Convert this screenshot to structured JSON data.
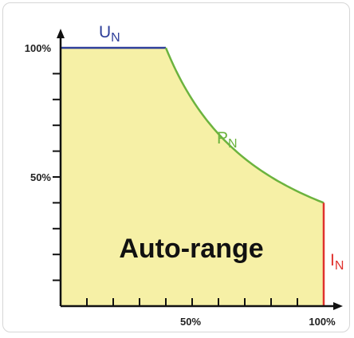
{
  "chart_data": {
    "type": "area",
    "area_label": "Auto-range",
    "xlim": [
      0,
      100
    ],
    "ylim": [
      0,
      100
    ],
    "x_tick_labels": [
      {
        "value": 50,
        "text": "50%"
      },
      {
        "value": 100,
        "text": "100%"
      }
    ],
    "y_tick_labels": [
      {
        "value": 50,
        "text": "50%"
      },
      {
        "value": 100,
        "text": "100%"
      }
    ],
    "x_minor_ticks": [
      10,
      20,
      30,
      40,
      50,
      60,
      70,
      80,
      90
    ],
    "y_minor_ticks": [
      10,
      20,
      30,
      40,
      50,
      60,
      70,
      80,
      90
    ],
    "segments": [
      {
        "id": "voltage",
        "label": "U",
        "subscript": "N",
        "color": "#2e3f9a",
        "points": [
          [
            0,
            100
          ],
          [
            40,
            100
          ]
        ]
      },
      {
        "id": "power",
        "label": "P",
        "subscript": "N",
        "color": "#6cb33e",
        "hyperbola_k": 4000,
        "x_range": [
          40,
          100
        ]
      },
      {
        "id": "current",
        "label": "I",
        "subscript": "N",
        "color": "#e0322d",
        "points": [
          [
            100,
            40
          ],
          [
            100,
            0
          ]
        ]
      }
    ],
    "fill_color": "#f6f0a6",
    "axis_color": "#111111"
  }
}
